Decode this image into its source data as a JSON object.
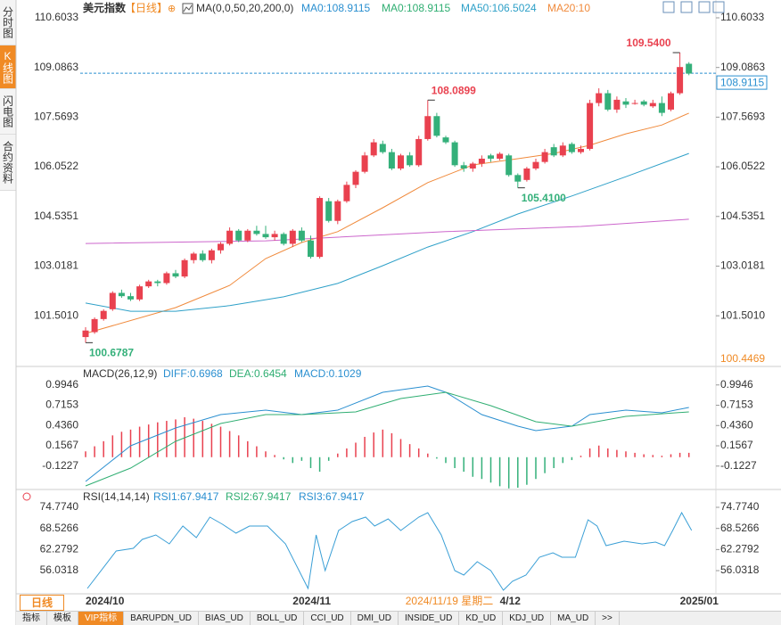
{
  "ui": {
    "side_tabs": [
      "分时图",
      "K线图",
      "闪电图",
      "合约资料"
    ],
    "period_button": "日线",
    "bottom_tabs": [
      "指标",
      "模板",
      "VIP指标",
      "BARUPDN_UD",
      "BIAS_UD",
      "BOLL_UD",
      "CCI_UD",
      "DMI_UD",
      "INSIDE_UD",
      "KD_UD",
      "KDJ_UD",
      "MA_UD",
      ">>"
    ]
  },
  "xaxis": {
    "labels": [
      {
        "x": 0,
        "label": "2024/10"
      },
      {
        "x": 23,
        "label": "2024/11"
      },
      {
        "x": 46,
        "label": "4/12"
      },
      {
        "x": 66,
        "label": "2025/01"
      }
    ],
    "cursor": {
      "x": 40,
      "label": "2024/11/19 星期二"
    }
  },
  "chart_data": [
    {
      "type": "candlestick",
      "title": "美元指数",
      "period": "【日线】",
      "indicator": "MA(0,0,50,20,200,0)",
      "indicator_labels": [
        "MA0:108.9115",
        "MA0:108.9115",
        "MA50:106.5024",
        "MA20:10"
      ],
      "up_color": "#e9414f",
      "down_color": "#34b07a",
      "ylim": [
        99.98,
        110.93
      ],
      "yticks": [
        110.6033,
        109.0863,
        107.5693,
        106.0522,
        104.5351,
        103.0181,
        {
          "value": 101.501,
          "label": "101.5010"
        }
      ],
      "last_price": 108.9115,
      "range_low": 100.4469,
      "candles": [
        [
          100.85,
          101.15,
          100.6787,
          101.05
        ],
        [
          101.0,
          101.45,
          100.95,
          101.4
        ],
        [
          101.4,
          101.7,
          101.35,
          101.65
        ],
        [
          101.7,
          102.25,
          101.65,
          102.2
        ],
        [
          102.2,
          102.3,
          102.05,
          102.1
        ],
        [
          102.1,
          102.2,
          101.95,
          102.0
        ],
        [
          102.0,
          102.45,
          101.95,
          102.4
        ],
        [
          102.4,
          102.6,
          102.35,
          102.55
        ],
        [
          102.55,
          102.6,
          102.4,
          102.5
        ],
        [
          102.5,
          102.85,
          102.45,
          102.8
        ],
        [
          102.8,
          102.9,
          102.65,
          102.7
        ],
        [
          102.7,
          103.25,
          102.65,
          103.2
        ],
        [
          103.2,
          103.45,
          103.1,
          103.4
        ],
        [
          103.4,
          103.5,
          103.15,
          103.2
        ],
        [
          103.2,
          103.55,
          103.1,
          103.5
        ],
        [
          103.5,
          103.75,
          103.4,
          103.7
        ],
        [
          103.7,
          104.2,
          103.65,
          104.1
        ],
        [
          104.1,
          104.15,
          103.75,
          103.8
        ],
        [
          103.8,
          104.15,
          103.75,
          104.1
        ],
        [
          104.1,
          104.25,
          103.95,
          104.0
        ],
        [
          104.0,
          104.25,
          103.85,
          103.9
        ],
        [
          103.9,
          104.1,
          103.8,
          104.0
        ],
        [
          104.0,
          104.05,
          103.65,
          103.7
        ],
        [
          103.7,
          104.15,
          103.6,
          104.1
        ],
        [
          104.1,
          104.2,
          103.75,
          103.8
        ],
        [
          103.8,
          103.95,
          103.25,
          103.3
        ],
        [
          103.3,
          105.15,
          103.25,
          105.1
        ],
        [
          105.0,
          105.1,
          104.35,
          104.4
        ],
        [
          104.4,
          105.05,
          104.3,
          105.0
        ],
        [
          105.0,
          105.6,
          104.95,
          105.5
        ],
        [
          105.5,
          105.95,
          105.4,
          105.9
        ],
        [
          105.9,
          106.5,
          105.85,
          106.4
        ],
        [
          106.4,
          106.9,
          106.35,
          106.8
        ],
        [
          106.75,
          106.85,
          106.45,
          106.5
        ],
        [
          106.5,
          106.6,
          105.95,
          106.0
        ],
        [
          106.0,
          106.45,
          105.95,
          106.4
        ],
        [
          106.4,
          106.5,
          106.05,
          106.1
        ],
        [
          106.1,
          107.0,
          106.05,
          106.9
        ],
        [
          106.9,
          108.0899,
          106.85,
          107.6
        ],
        [
          107.6,
          107.7,
          106.95,
          107.0
        ],
        [
          106.95,
          107.0,
          106.75,
          106.8
        ],
        [
          106.8,
          106.85,
          106.05,
          106.1
        ],
        [
          106.1,
          106.2,
          105.9,
          106.0
        ],
        [
          106.0,
          106.2,
          105.9,
          106.15
        ],
        [
          106.15,
          106.4,
          106.05,
          106.3
        ],
        [
          106.4,
          106.45,
          106.2,
          106.3
        ],
        [
          106.3,
          106.5,
          106.25,
          106.45
        ],
        [
          106.4,
          106.45,
          105.75,
          105.8
        ],
        [
          105.8,
          105.85,
          105.41,
          105.6
        ],
        [
          105.65,
          106.05,
          105.6,
          106.0
        ],
        [
          106.0,
          106.3,
          105.95,
          106.2
        ],
        [
          106.2,
          106.6,
          106.15,
          106.5
        ],
        [
          106.65,
          106.75,
          106.35,
          106.4
        ],
        [
          106.4,
          106.8,
          106.35,
          106.7
        ],
        [
          106.75,
          106.8,
          106.45,
          106.5
        ],
        [
          106.5,
          106.7,
          106.45,
          106.6
        ],
        [
          106.6,
          108.1,
          106.55,
          108.0
        ],
        [
          108.0,
          108.45,
          107.9,
          108.3
        ],
        [
          108.3,
          108.4,
          107.75,
          107.8
        ],
        [
          107.8,
          108.2,
          107.7,
          108.1
        ],
        [
          108.05,
          108.15,
          107.85,
          107.95
        ],
        [
          108.0,
          108.1,
          107.95,
          108.0
        ],
        [
          108.05,
          108.1,
          107.9,
          107.95
        ],
        [
          107.9,
          108.1,
          107.85,
          108.0
        ],
        [
          108.0,
          108.2,
          107.6,
          107.7
        ],
        [
          107.8,
          108.35,
          107.75,
          108.3
        ],
        [
          108.3,
          109.54,
          108.25,
          109.1
        ],
        [
          109.2,
          109.25,
          108.85,
          108.9
        ]
      ],
      "series": [
        {
          "color": "#f08a3c",
          "x": [
            0,
            10,
            16,
            20,
            24,
            28,
            33,
            38,
            43,
            48,
            52,
            56,
            60,
            64,
            67
          ],
          "values": [
            100.96,
            101.75,
            102.43,
            103.25,
            103.74,
            104.07,
            104.8,
            105.57,
            106.11,
            106.3,
            106.46,
            106.71,
            107.06,
            107.33,
            107.69
          ]
        },
        {
          "color": "#2ea0c8",
          "x": [
            0,
            5,
            10,
            16,
            22,
            28,
            33,
            38,
            43,
            48,
            54,
            60,
            67
          ],
          "values": [
            101.89,
            101.64,
            101.64,
            101.81,
            102.08,
            102.49,
            103.03,
            103.6,
            104.07,
            104.61,
            105.16,
            105.75,
            106.46
          ]
        },
        {
          "color": "#cc66cc",
          "x": [
            0,
            20,
            40,
            55,
            67
          ],
          "values": [
            103.71,
            103.79,
            104.07,
            104.23,
            104.45
          ]
        }
      ],
      "annotations": [
        {
          "x": 66,
          "value": 109.54,
          "label": "109.5400",
          "color": "#e9414f"
        },
        {
          "x": 38,
          "value": 108.0899,
          "label": "108.0899",
          "color": "#e9414f"
        },
        {
          "x": 48,
          "value": 105.41,
          "label": "105.4100",
          "color": "#34b07a"
        },
        {
          "x": 0,
          "value": 100.6787,
          "label": "100.6787",
          "color": "#34b07a"
        }
      ]
    },
    {
      "type": "macd",
      "title": "MACD(26,12,9)",
      "legend": [
        "DIFF:0.6968",
        "DEA:0.6454",
        "MACD:0.1029"
      ],
      "ylim": [
        -0.457,
        1.225
      ],
      "yticks": [
        0.9946,
        0.7153,
        {
          "value": 0.436,
          "label": "0.4360"
        },
        0.1567,
        -0.1227
      ],
      "up_color": "#e9414f",
      "down_color": "#34b07a",
      "values": [
        0.08,
        0.15,
        0.22,
        0.3,
        0.35,
        0.38,
        0.42,
        0.45,
        0.48,
        0.5,
        0.52,
        0.55,
        0.53,
        0.5,
        0.46,
        0.42,
        0.36,
        0.3,
        0.22,
        0.15,
        0.08,
        0.03,
        -0.03,
        -0.08,
        -0.05,
        -0.15,
        -0.2,
        -0.05,
        0.05,
        0.12,
        0.2,
        0.28,
        0.34,
        0.38,
        0.33,
        0.25,
        0.18,
        0.12,
        0.05,
        -0.02,
        -0.08,
        -0.15,
        -0.2,
        -0.27,
        -0.3,
        -0.35,
        -0.4,
        -0.43,
        -0.42,
        -0.38,
        -0.3,
        -0.22,
        -0.15,
        -0.08,
        -0.04,
        0.02,
        0.12,
        0.16,
        0.12,
        0.1,
        0.08,
        0.06,
        0.04,
        0.03,
        0.02,
        0.04,
        0.06,
        0.06
      ],
      "series": [
        {
          "color": "#2a8fd0",
          "x": [
            0,
            5,
            10,
            15,
            20,
            24,
            28,
            33,
            38,
            40,
            44,
            48,
            50,
            54,
            56,
            60,
            64,
            67
          ],
          "values": [
            -0.334,
            0.157,
            0.402,
            0.586,
            0.648,
            0.586,
            0.648,
            0.893,
            0.979,
            0.893,
            0.586,
            0.427,
            0.365,
            0.427,
            0.586,
            0.648,
            0.611,
            0.685
          ]
        },
        {
          "color": "#2fae72",
          "x": [
            0,
            5,
            10,
            15,
            20,
            24,
            30,
            35,
            40,
            45,
            50,
            54,
            60,
            67
          ],
          "values": [
            -0.396,
            -0.15,
            0.218,
            0.464,
            0.586,
            0.586,
            0.623,
            0.807,
            0.893,
            0.709,
            0.488,
            0.427,
            0.562,
            0.623
          ]
        }
      ]
    },
    {
      "type": "rsi",
      "title": "RSI(14,14,14)",
      "legend": [
        "RSI1:67.9417",
        "RSI2:67.9417",
        "RSI3:67.9417"
      ],
      "ylim": [
        49.44,
        79.0
      ],
      "yticks": [
        {
          "value": 74.774,
          "label": "74.7740"
        },
        68.5266,
        62.2792,
        56.0318
      ],
      "series": [
        {
          "color": "#3a9fd6",
          "x": [
            0.2,
            3.4,
            5.3,
            6.3,
            7.8,
            9.3,
            10.8,
            12.3,
            13.8,
            15.2,
            16.7,
            18.2,
            20.2,
            22.2,
            23.7,
            24.7,
            25.6,
            26.6,
            28.1,
            29.6,
            31.1,
            32.1,
            33.6,
            35,
            37,
            38,
            39.5,
            41,
            42,
            43.5,
            45,
            46.4,
            47.4,
            48.9,
            50.4,
            51.9,
            52.9,
            54.4,
            55.8,
            56.8,
            57.8,
            59.8,
            61.8,
            63.3,
            64.3,
            65.2,
            66.2,
            67.3
          ],
          "values": [
            50.76,
            61.84,
            62.63,
            65.27,
            66.59,
            63.95,
            69.23,
            65.8,
            71.87,
            69.76,
            67.12,
            69.23,
            69.23,
            63.95,
            56.03,
            50.76,
            66.59,
            56.03,
            67.91,
            70.55,
            71.87,
            69.23,
            71.34,
            67.91,
            71.87,
            73.19,
            66.59,
            56.03,
            54.72,
            58.68,
            56.03,
            50.23,
            52.87,
            54.72,
            59.99,
            61.31,
            59.99,
            59.99,
            71.08,
            69.23,
            63.42,
            64.74,
            63.95,
            64.48,
            63.42,
            67.91,
            73.19,
            67.94
          ]
        }
      ]
    }
  ]
}
